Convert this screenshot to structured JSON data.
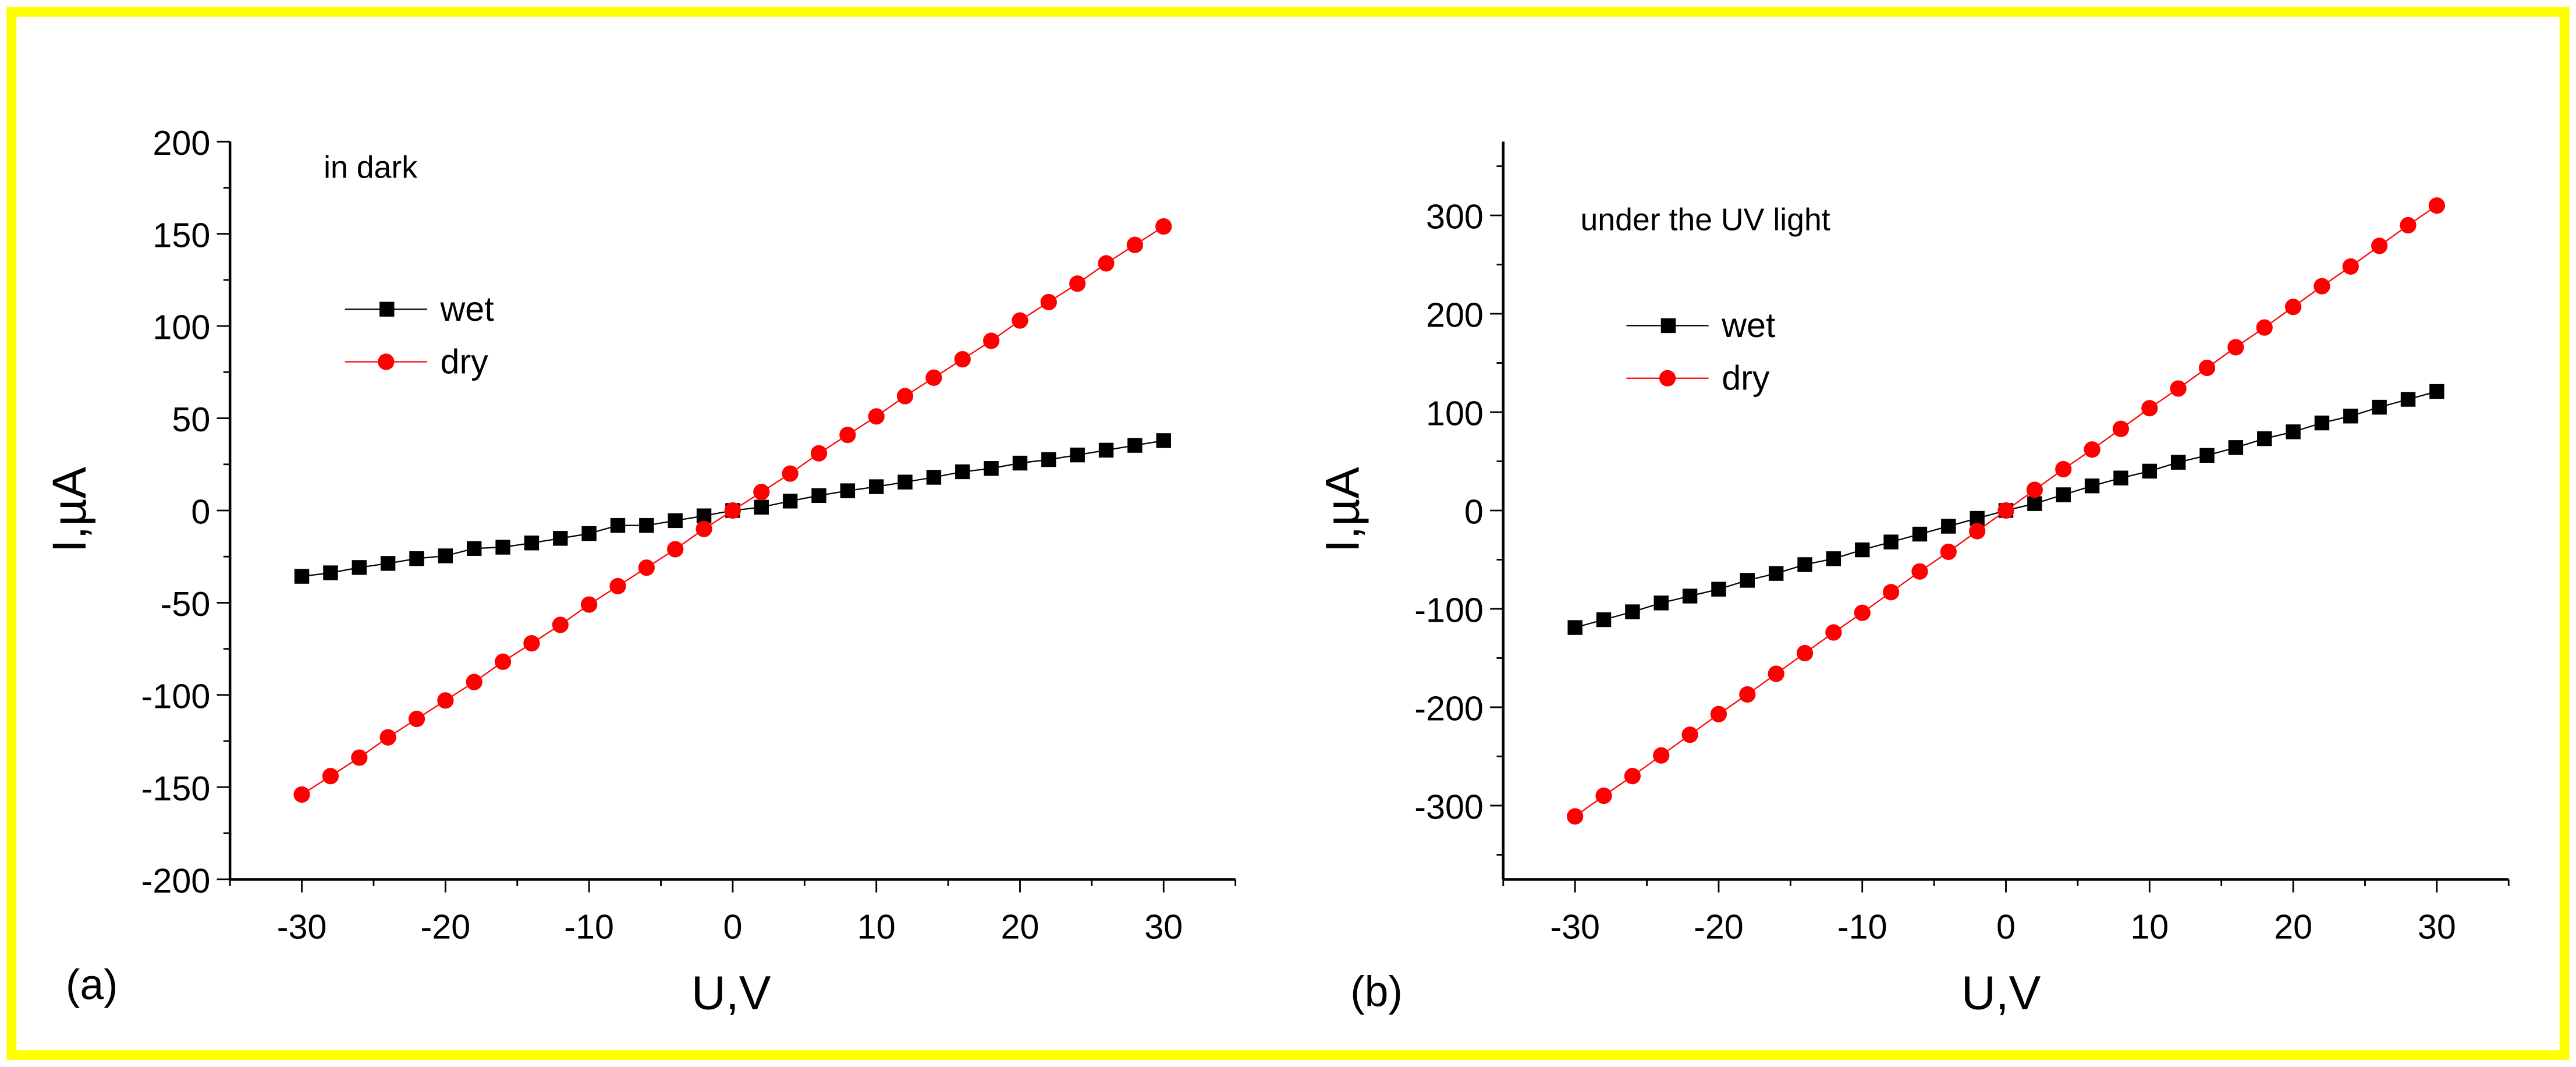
{
  "frame_color": "#ffff00",
  "chart_data": [
    {
      "type": "line",
      "panel_label": "(a)",
      "annotation": "in dark",
      "xlabel": "U,V",
      "ylabel": "I,µA",
      "xlim": [
        -35,
        35
      ],
      "ylim": [
        -200,
        200
      ],
      "xticks": [
        -30,
        -20,
        -10,
        0,
        10,
        20,
        30
      ],
      "yticks": [
        -200,
        -150,
        -100,
        -50,
        0,
        50,
        100,
        150,
        200
      ],
      "grid": false,
      "legend_position": "top-left",
      "x": [
        -30,
        -28,
        -26,
        -24,
        -22,
        -20,
        -18,
        -16,
        -14,
        -12,
        -10,
        -8,
        -6,
        -4,
        -2,
        0,
        2,
        4,
        6,
        8,
        10,
        12,
        14,
        16,
        18,
        20,
        22,
        24,
        26,
        28,
        30
      ],
      "series": [
        {
          "name": "wet",
          "color": "#000000",
          "marker": "square",
          "values": [
            -35.7,
            -33.8,
            -30.9,
            -28.7,
            -26.1,
            -24.6,
            -20.6,
            -19.9,
            -17.6,
            -15.1,
            -12.5,
            -8.1,
            -8.1,
            -5.5,
            -2.9,
            0,
            1.8,
            5.1,
            8.1,
            10.7,
            12.9,
            15.4,
            18,
            21,
            22.8,
            25.7,
            27.6,
            30.1,
            32.7,
            35.3,
            37.9
          ]
        },
        {
          "name": "dry",
          "color": "#ff0000",
          "marker": "circle",
          "values": [
            -154,
            -144,
            -134,
            -123,
            -113,
            -103,
            -93,
            -82,
            -72,
            -62,
            -51,
            -41,
            -31,
            -21,
            -10,
            0,
            10,
            20,
            31,
            41,
            51,
            62,
            72,
            82,
            92,
            103,
            113,
            123,
            134,
            144,
            154
          ]
        }
      ]
    },
    {
      "type": "line",
      "panel_label": "(b)",
      "annotation": "under the UV light",
      "xlabel": "U,V",
      "ylabel": "I,µA",
      "xlim": [
        -35,
        35
      ],
      "ylim": [
        -375,
        375
      ],
      "xticks": [
        -30,
        -20,
        -10,
        0,
        10,
        20,
        30
      ],
      "yticks": [
        -300,
        -200,
        -100,
        0,
        100,
        200,
        300
      ],
      "grid": false,
      "legend_position": "top-left",
      "x": [
        -30,
        -28,
        -26,
        -24,
        -22,
        -20,
        -18,
        -16,
        -14,
        -12,
        -10,
        -8,
        -6,
        -4,
        -2,
        0,
        2,
        4,
        6,
        8,
        10,
        12,
        14,
        16,
        18,
        20,
        22,
        24,
        26,
        28,
        30
      ],
      "series": [
        {
          "name": "wet",
          "color": "#000000",
          "marker": "square",
          "values": [
            -119,
            -111,
            -103,
            -94,
            -87,
            -80,
            -71,
            -64,
            -55,
            -49,
            -40,
            -32,
            -24,
            -16,
            -8,
            0,
            7,
            16,
            25,
            33,
            40,
            49,
            56,
            64,
            73,
            80,
            89,
            96,
            105,
            113,
            121
          ]
        },
        {
          "name": "dry",
          "color": "#ff0000",
          "marker": "circle",
          "values": [
            -311,
            -290,
            -270,
            -249,
            -228,
            -207,
            -187,
            -166,
            -145,
            -124,
            -104,
            -83,
            -62,
            -42,
            -21,
            0,
            21,
            42,
            62,
            83,
            104,
            124,
            145,
            166,
            186,
            207,
            228,
            248,
            269,
            290,
            310
          ]
        }
      ]
    }
  ]
}
